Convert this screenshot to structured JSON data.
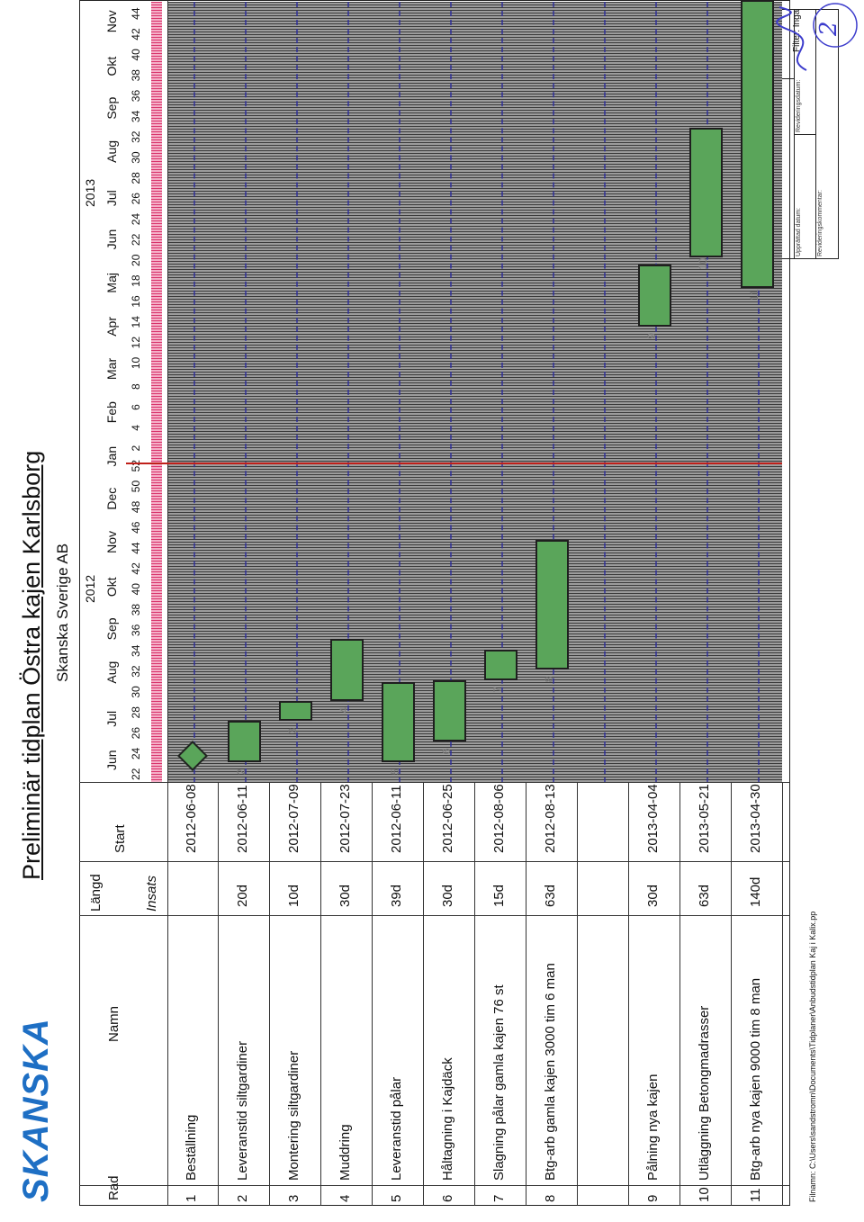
{
  "logo": "SKANSKA",
  "title": "Preliminär tidplan Östra kajen Karlsborg",
  "company": "Skanska Sverige AB",
  "doc_box": {
    "arbetsnummer": "Arbetsnummer:",
    "upprattad_av": "Upprättad av:",
    "upprattad_datum": "Upprättad datum:",
    "revideringsdatum": "Revideringsdatum:",
    "revideringskommentar": "Revideringskommentar:"
  },
  "headers": {
    "rad": "Rad",
    "namn": "Namn",
    "langd": "Längd",
    "start": "Start",
    "insats": "Insats"
  },
  "timeline": {
    "years": [
      "2012",
      "2013"
    ],
    "months": [
      "Jun",
      "Jul",
      "Aug",
      "Sep",
      "Okt",
      "Nov",
      "Dec",
      "Jan",
      "Feb",
      "Mar",
      "Apr",
      "Maj",
      "Jun",
      "Jul",
      "Aug",
      "Sep",
      "Okt",
      "Nov"
    ],
    "weeks": [
      "22",
      "24",
      "26",
      "28",
      "30",
      "32",
      "34",
      "36",
      "38",
      "40",
      "42",
      "44",
      "46",
      "48",
      "50",
      "52",
      "2",
      "4",
      "6",
      "8",
      "10",
      "12",
      "14",
      "16",
      "18",
      "20",
      "22",
      "24",
      "26",
      "28",
      "30",
      "32",
      "34",
      "36",
      "38",
      "40",
      "42",
      "44"
    ]
  },
  "rows": [
    {
      "rad": "1",
      "namn": "Beställning",
      "langd": "",
      "start": "2012-06-08"
    },
    {
      "rad": "2",
      "namn": "Leveranstid siltgardiner",
      "langd": "20d",
      "start": "2012-06-11"
    },
    {
      "rad": "3",
      "namn": "Montering siltgardiner",
      "langd": "10d",
      "start": "2012-07-09"
    },
    {
      "rad": "4",
      "namn": "Muddring",
      "langd": "30d",
      "start": "2012-07-23"
    },
    {
      "rad": "5",
      "namn": "Leveranstid pålar",
      "langd": "39d",
      "start": "2012-06-11"
    },
    {
      "rad": "6",
      "namn": "Håltagning i Kajdäck",
      "langd": "30d",
      "start": "2012-06-25"
    },
    {
      "rad": "7",
      "namn": "Slagning pålar gamla kajen 76 st",
      "langd": "15d",
      "start": "2012-08-06"
    },
    {
      "rad": "8",
      "namn": "Btg-arb gamla kajen 3000 tim 6 man",
      "langd": "63d",
      "start": "2012-08-13"
    },
    {
      "rad": "",
      "namn": "",
      "langd": "",
      "start": ""
    },
    {
      "rad": "9",
      "namn": "Pålning nya kajen",
      "langd": "30d",
      "start": "2013-04-04"
    },
    {
      "rad": "10",
      "namn": "Utläggning Betongmadrasser",
      "langd": "63d",
      "start": "2013-05-21"
    },
    {
      "rad": "11",
      "namn": "Btg-arb nya kajen 9000 tim 8 man",
      "langd": "140d",
      "start": "2013-04-30"
    }
  ],
  "footer": "Filnamn: C:\\Users\\sandstromn\\Documents\\Tidplaner\\Anbudstidplan Kaj i Kalix.pp",
  "filter": "Filter: Inga",
  "annotation": "2",
  "colors": {
    "bar": "#5aa55a",
    "today_line": "#c0201a",
    "logo": "#1e6fc4",
    "ink": "#3c3ccc"
  }
}
